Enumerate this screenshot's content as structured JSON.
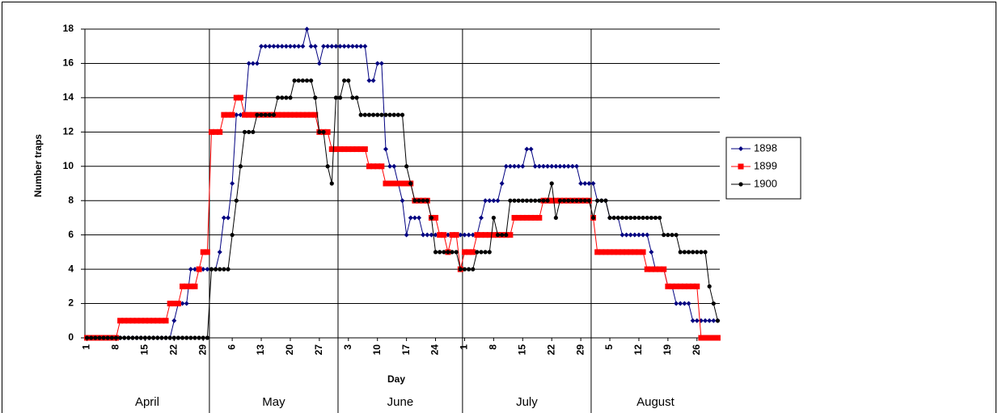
{
  "chart_data": {
    "type": "line",
    "y_label": "Number traps",
    "x_label": "Day",
    "categories": [
      "1",
      null,
      null,
      null,
      null,
      null,
      null,
      "8",
      null,
      null,
      null,
      null,
      null,
      null,
      "15",
      null,
      null,
      null,
      null,
      null,
      null,
      "22",
      null,
      null,
      null,
      null,
      null,
      null,
      "29",
      null,
      null,
      null,
      null,
      null,
      null,
      "6",
      null,
      null,
      null,
      null,
      null,
      null,
      "13",
      null,
      null,
      null,
      null,
      null,
      null,
      "20",
      null,
      null,
      null,
      null,
      null,
      null,
      "27",
      null,
      null,
      null,
      null,
      null,
      null,
      "3",
      null,
      null,
      null,
      null,
      null,
      null,
      "10",
      null,
      null,
      null,
      null,
      null,
      null,
      "17",
      null,
      null,
      null,
      null,
      null,
      null,
      "24",
      null,
      null,
      null,
      null,
      null,
      null,
      "1",
      null,
      null,
      null,
      null,
      null,
      null,
      "8",
      null,
      null,
      null,
      null,
      null,
      null,
      "15",
      null,
      null,
      null,
      null,
      null,
      null,
      "22",
      null,
      null,
      null,
      null,
      null,
      null,
      "29",
      null,
      null,
      null,
      null,
      null,
      null,
      "5",
      null,
      null,
      null,
      null,
      null,
      null,
      "12",
      null,
      null,
      null,
      null,
      null,
      null,
      "19",
      null,
      null,
      null,
      null,
      null,
      null,
      "26",
      null,
      null,
      null,
      null,
      null
    ],
    "x_groups": [
      {
        "label": "April",
        "span": 30
      },
      {
        "label": "May",
        "span": 31
      },
      {
        "label": "June",
        "span": 30
      },
      {
        "label": "July",
        "span": 31
      },
      {
        "label": "August",
        "span": 31
      }
    ],
    "series": [
      {
        "name": "1898",
        "color": "#000080",
        "marker": "diamond",
        "values": [
          0,
          0,
          0,
          0,
          0,
          0,
          0,
          0,
          0,
          0,
          0,
          0,
          0,
          0,
          0,
          0,
          0,
          0,
          0,
          0,
          0,
          1,
          2,
          2,
          2,
          4,
          4,
          4,
          4,
          4,
          4,
          4,
          5,
          7,
          7,
          9,
          13,
          13,
          13,
          16,
          16,
          16,
          17,
          17,
          17,
          17,
          17,
          17,
          17,
          17,
          17,
          17,
          17,
          18,
          17,
          17,
          16,
          17,
          17,
          17,
          17,
          17,
          17,
          17,
          17,
          17,
          17,
          17,
          15,
          15,
          16,
          16,
          11,
          10,
          10,
          9,
          8,
          6,
          7,
          7,
          7,
          6,
          6,
          6,
          6,
          6,
          6,
          6,
          6,
          6,
          6,
          6,
          6,
          6,
          6,
          7,
          8,
          8,
          8,
          8,
          9,
          10,
          10,
          10,
          10,
          10,
          11,
          11,
          10,
          10,
          10,
          10,
          10,
          10,
          10,
          10,
          10,
          10,
          10,
          9,
          9,
          9,
          9,
          8,
          8,
          8,
          7,
          7,
          7,
          6,
          6,
          6,
          6,
          6,
          6,
          6,
          5,
          4,
          4,
          4,
          3,
          3,
          2,
          2,
          2,
          2,
          1,
          1,
          1,
          1,
          1,
          1,
          1
        ]
      },
      {
        "name": "1899",
        "color": "#ff0000",
        "marker": "square",
        "values": [
          0,
          0,
          0,
          0,
          0,
          0,
          0,
          0,
          1,
          1,
          1,
          1,
          1,
          1,
          1,
          1,
          1,
          1,
          1,
          1,
          2,
          2,
          2,
          3,
          3,
          3,
          3,
          4,
          5,
          5,
          12,
          12,
          12,
          13,
          13,
          13,
          14,
          14,
          13,
          13,
          13,
          13,
          13,
          13,
          13,
          13,
          13,
          13,
          13,
          13,
          13,
          13,
          13,
          13,
          13,
          13,
          12,
          12,
          12,
          11,
          11,
          11,
          11,
          11,
          11,
          11,
          11,
          11,
          10,
          10,
          10,
          10,
          9,
          9,
          9,
          9,
          9,
          9,
          9,
          8,
          8,
          8,
          8,
          7,
          7,
          6,
          6,
          5,
          6,
          6,
          4,
          5,
          5,
          5,
          6,
          6,
          6,
          6,
          6,
          6,
          6,
          6,
          6,
          7,
          7,
          7,
          7,
          7,
          7,
          7,
          8,
          8,
          8,
          8,
          8,
          8,
          8,
          8,
          8,
          8,
          8,
          8,
          7,
          5,
          5,
          5,
          5,
          5,
          5,
          5,
          5,
          5,
          5,
          5,
          5,
          4,
          4,
          4,
          4,
          4,
          3,
          3,
          3,
          3,
          3,
          3,
          3,
          3,
          0,
          0,
          0,
          0,
          0
        ]
      },
      {
        "name": "1900",
        "color": "#000000",
        "marker": "circle",
        "values": [
          0,
          0,
          0,
          0,
          0,
          0,
          0,
          0,
          0,
          0,
          0,
          0,
          0,
          0,
          0,
          0,
          0,
          0,
          0,
          0,
          0,
          0,
          0,
          0,
          0,
          0,
          0,
          0,
          0,
          0,
          4,
          4,
          4,
          4,
          4,
          6,
          8,
          10,
          12,
          12,
          12,
          13,
          13,
          13,
          13,
          13,
          14,
          14,
          14,
          14,
          15,
          15,
          15,
          15,
          15,
          14,
          12,
          12,
          10,
          9,
          14,
          14,
          15,
          15,
          14,
          14,
          13,
          13,
          13,
          13,
          13,
          13,
          13,
          13,
          13,
          13,
          13,
          10,
          9,
          8,
          8,
          8,
          8,
          7,
          5,
          5,
          5,
          5,
          5,
          5,
          4,
          4,
          4,
          4,
          5,
          5,
          5,
          5,
          7,
          6,
          6,
          6,
          8,
          8,
          8,
          8,
          8,
          8,
          8,
          8,
          8,
          8,
          9,
          7,
          8,
          8,
          8,
          8,
          8,
          8,
          8,
          8,
          7,
          8,
          8,
          8,
          7,
          7,
          7,
          7,
          7,
          7,
          7,
          7,
          7,
          7,
          7,
          7,
          7,
          6,
          6,
          6,
          6,
          5,
          5,
          5,
          5,
          5,
          5,
          5,
          3,
          2,
          1
        ]
      }
    ],
    "ylim": [
      0,
      18
    ],
    "yticks": [
      0,
      2,
      4,
      6,
      8,
      10,
      12,
      14,
      16,
      18
    ],
    "grid": true,
    "legend": "right"
  }
}
